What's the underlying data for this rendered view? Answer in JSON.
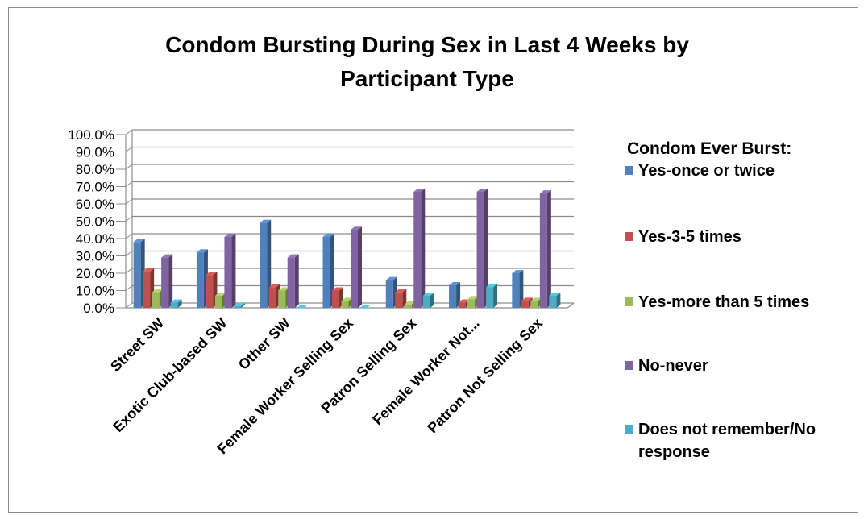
{
  "chart_data": {
    "type": "bar",
    "title": "Condom Bursting  During Sex in Last 4 Weeks by Participant Type",
    "title_lines": [
      "Condom Bursting  During Sex in Last 4 Weeks by",
      "Participant Type"
    ],
    "legend_title": "Condom Ever Burst:",
    "legend_position": "right",
    "grid": true,
    "ylim": [
      0,
      100
    ],
    "y_ticks": [
      "0.0%",
      "10.0%",
      "20.0%",
      "30.0%",
      "40.0%",
      "50.0%",
      "60.0%",
      "70.0%",
      "80.0%",
      "90.0%",
      "100.0%"
    ],
    "categories": [
      "Street SW",
      "Exotic Club-based SW",
      "Other SW",
      "Female Worker Selling Sex",
      "Patron Selling Sex",
      "Female Worker Not...",
      "Patron Not Selling Sex"
    ],
    "series": [
      {
        "name": "Yes-once or twice",
        "color": "#4f81bd",
        "values": [
          38,
          32,
          49,
          41,
          16,
          13,
          20
        ]
      },
      {
        "name": "Yes-3-5 times",
        "color": "#c0504d",
        "values": [
          21,
          19,
          12,
          10,
          9,
          3,
          4
        ]
      },
      {
        "name": "Yes-more than 5 times",
        "color": "#9bbb59",
        "values": [
          9,
          7,
          10,
          4,
          2,
          5,
          4
        ]
      },
      {
        "name": "No-never",
        "color": "#8064a2",
        "values": [
          29,
          41,
          29,
          45,
          67,
          67,
          66
        ]
      },
      {
        "name": "Does not remember/No response",
        "color": "#4bacc6",
        "values": [
          3,
          1,
          0,
          0,
          7,
          12,
          7
        ]
      }
    ]
  }
}
